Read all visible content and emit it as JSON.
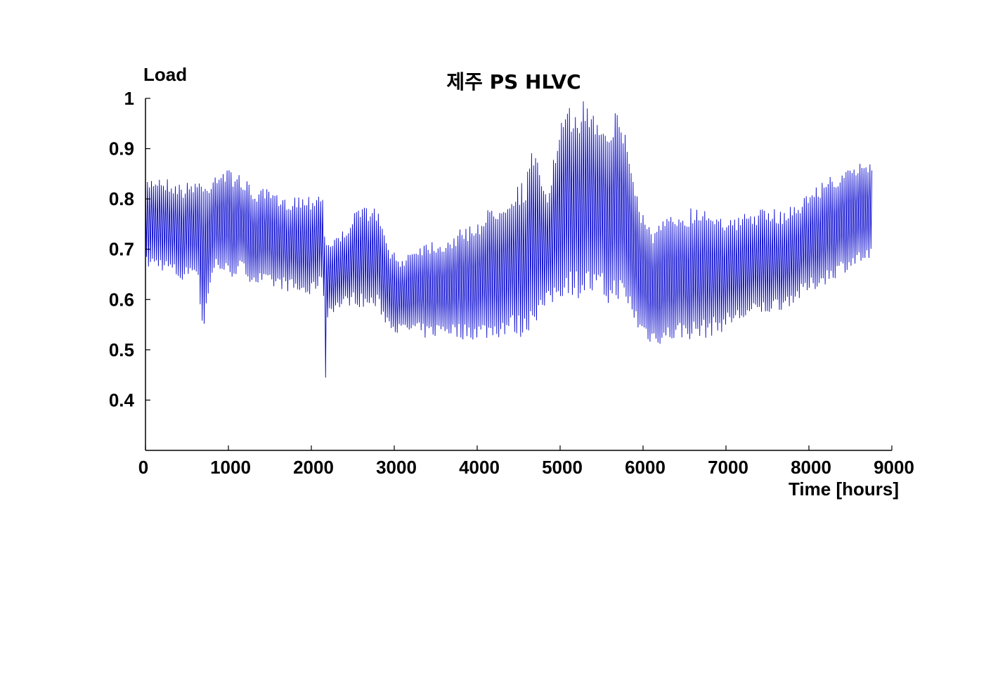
{
  "chart_data": {
    "type": "line",
    "title": "제주 PS HLVC",
    "xlabel": "Time [hours]",
    "ylabel": "Load",
    "xlim": [
      0,
      9000
    ],
    "ylim": [
      0.3,
      1.0
    ],
    "grid": false,
    "x_ticks": [
      "0",
      "1000",
      "2000",
      "3000",
      "4000",
      "5000",
      "6000",
      "7000",
      "8000",
      "9000"
    ],
    "y_ticks": [
      "0.4",
      "0.5",
      "0.6",
      "0.7",
      "0.8",
      "0.9",
      "1"
    ],
    "series": [
      {
        "color": "#0000cc",
        "sampling": "daily envelope (min / max per day), hourly data",
        "x": [
          0,
          150,
          300,
          450,
          600,
          650,
          700,
          750,
          850,
          1000,
          1150,
          1300,
          1500,
          1650,
          1800,
          2000,
          2100,
          2150,
          2160,
          2200,
          2350,
          2500,
          2650,
          2800,
          2900,
          3050,
          3250,
          3400,
          3600,
          3800,
          4000,
          4200,
          4400,
          4580,
          4650,
          4750,
          4850,
          5000,
          5100,
          5250,
          5300,
          5400,
          5500,
          5600,
          5700,
          5760,
          5850,
          5950,
          6100,
          6250,
          6450,
          6700,
          6900,
          7100,
          7300,
          7500,
          7700,
          7900,
          8100,
          8300,
          8500,
          8650,
          8760
        ],
        "max": [
          0.84,
          0.85,
          0.84,
          0.83,
          0.84,
          0.85,
          0.83,
          0.84,
          0.86,
          0.86,
          0.85,
          0.82,
          0.82,
          0.8,
          0.81,
          0.81,
          0.82,
          0.81,
          0.75,
          0.72,
          0.73,
          0.77,
          0.79,
          0.78,
          0.72,
          0.68,
          0.71,
          0.72,
          0.72,
          0.74,
          0.76,
          0.79,
          0.82,
          0.84,
          0.9,
          0.87,
          0.82,
          0.95,
          0.98,
          0.99,
          1.0,
          0.98,
          0.97,
          0.96,
          0.98,
          0.96,
          0.88,
          0.8,
          0.74,
          0.76,
          0.78,
          0.79,
          0.78,
          0.76,
          0.78,
          0.78,
          0.78,
          0.8,
          0.83,
          0.85,
          0.86,
          0.88,
          0.88
        ],
        "min": [
          0.66,
          0.66,
          0.65,
          0.63,
          0.66,
          0.6,
          0.52,
          0.6,
          0.66,
          0.64,
          0.65,
          0.63,
          0.62,
          0.62,
          0.61,
          0.6,
          0.63,
          0.6,
          0.38,
          0.57,
          0.58,
          0.59,
          0.58,
          0.58,
          0.55,
          0.53,
          0.53,
          0.52,
          0.53,
          0.52,
          0.52,
          0.52,
          0.53,
          0.52,
          0.55,
          0.56,
          0.58,
          0.6,
          0.61,
          0.6,
          0.61,
          0.6,
          0.6,
          0.58,
          0.6,
          0.58,
          0.57,
          0.53,
          0.51,
          0.51,
          0.52,
          0.52,
          0.53,
          0.55,
          0.56,
          0.57,
          0.58,
          0.6,
          0.62,
          0.64,
          0.66,
          0.67,
          0.67
        ]
      }
    ]
  }
}
